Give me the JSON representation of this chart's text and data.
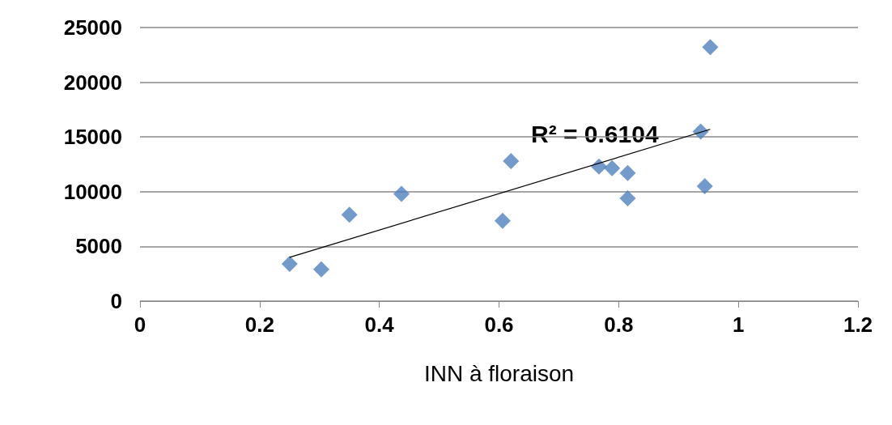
{
  "chart_data": {
    "type": "scatter",
    "xlabel": "INN à floraison",
    "marker": "diamond",
    "grid": "y",
    "xlim": [
      0,
      1.2
    ],
    "xticks": [
      0,
      0.2,
      0.4,
      0.6,
      0.8,
      1,
      1.2
    ],
    "ylim": [
      0,
      25000
    ],
    "yticks": [
      0,
      5000,
      10000,
      15000,
      20000,
      25000
    ],
    "annotations": [
      "R² = 0.6104"
    ],
    "series": [
      {
        "color": "#4f81bd",
        "x": [
          0.25,
          0.303,
          0.35,
          0.437,
          0.606,
          0.62,
          0.767,
          0.789,
          0.815,
          0.815,
          0.937,
          0.944,
          0.953
        ],
        "values": [
          3400,
          2900,
          7900,
          9800,
          7350,
          12800,
          12300,
          12150,
          11700,
          9400,
          15500,
          10500,
          23200
        ]
      },
      {
        "type": "line",
        "marker": "none",
        "color": "#000000",
        "x": [
          0.25,
          0.953
        ],
        "values": [
          4000,
          15700
        ]
      }
    ]
  }
}
